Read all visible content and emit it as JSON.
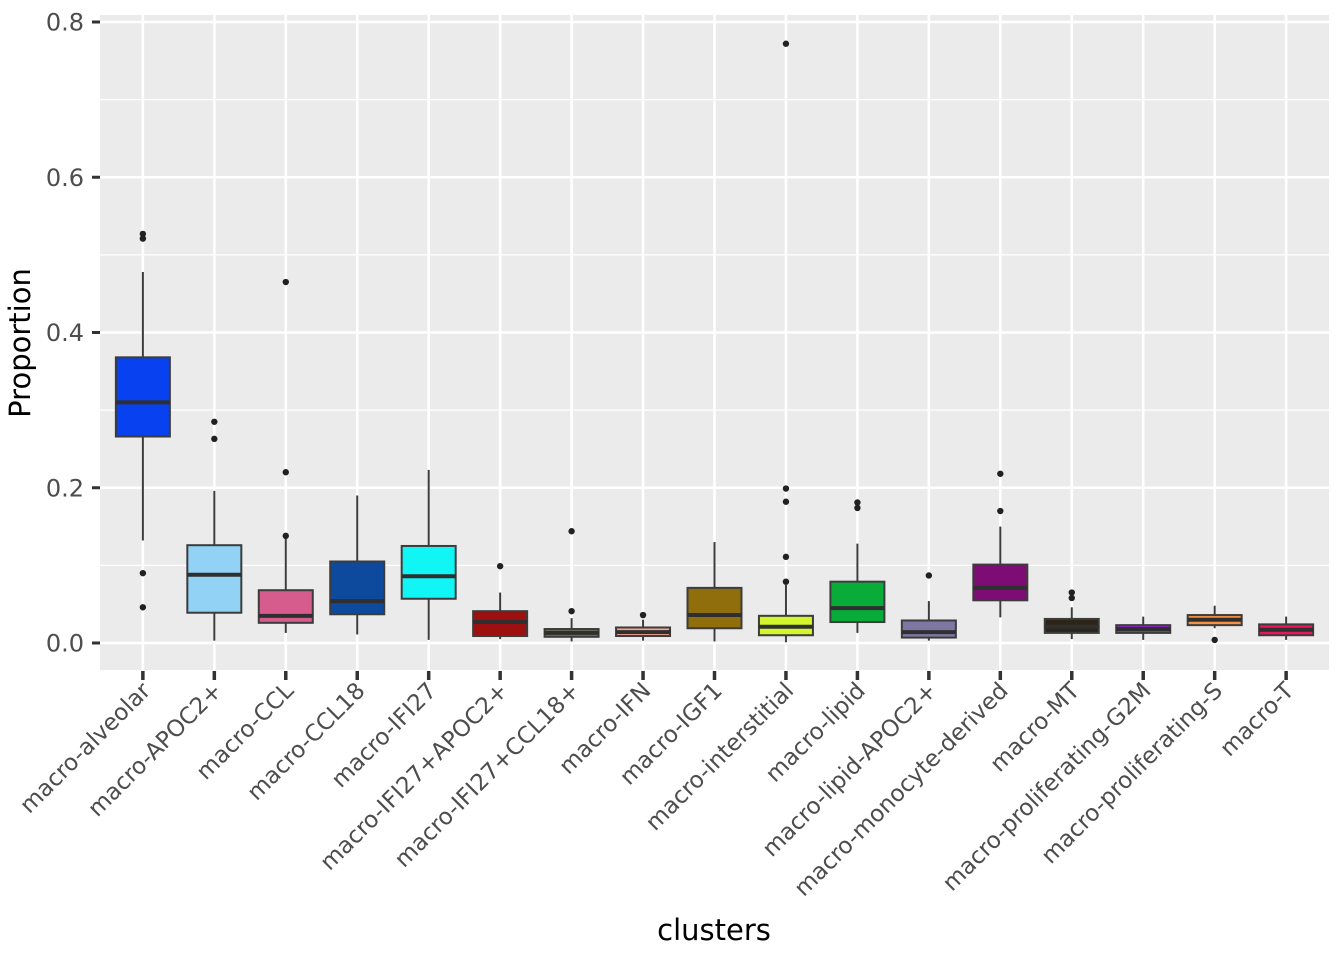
{
  "figure": {
    "background": "#FFFFFF",
    "panel_background": "#EBEBEB",
    "grid_major_color": "#FFFFFF",
    "grid_minor_color": "#FFFFFF",
    "axis_text_color": "#4D4D4D",
    "axis_title_color": "#000000",
    "tick_mark_color": "#333333",
    "box_border_color": "#3C3C3C",
    "median_line_color": "#2F2F2F",
    "outlier_color": "#212121"
  },
  "chart_data": {
    "type": "boxplot",
    "title": "",
    "xlabel": "clusters",
    "ylabel": "Proportion",
    "ylim": [
      0.0,
      0.8
    ],
    "yticks": [
      0.0,
      0.2,
      0.4,
      0.6,
      0.8
    ],
    "ytick_labels": [
      "0.0",
      "0.2",
      "0.4",
      "0.6",
      "0.8"
    ],
    "minor_gridlines": [
      0.1,
      0.3,
      0.5,
      0.7
    ],
    "grid": true,
    "legend": "none",
    "categories": [
      "macro-alveolar",
      "macro-APOC2+",
      "macro-CCL",
      "macro-CCL18",
      "macro-IFI27",
      "macro-IFI27+APOC2+",
      "macro-IFI27+CCL18+",
      "macro-IFN",
      "macro-IGF1",
      "macro-interstitial",
      "macro-lipid",
      "macro-lipid-APOC2+",
      "macro-monocyte-derived",
      "macro-MT",
      "macro-proliferating-G2M",
      "macro-proliferating-S",
      "macro-T"
    ],
    "series": [
      {
        "name": "macro-alveolar",
        "color": "#0741F0",
        "whisker_low": 0.132,
        "q1": 0.266,
        "median": 0.31,
        "q3": 0.368,
        "whisker_high": 0.478,
        "outliers": [
          0.527,
          0.521,
          0.09,
          0.046
        ]
      },
      {
        "name": "macro-APOC2+",
        "color": "#92D2F5",
        "whisker_low": 0.003,
        "q1": 0.039,
        "median": 0.088,
        "q3": 0.126,
        "whisker_high": 0.196,
        "outliers": [
          0.285,
          0.263
        ]
      },
      {
        "name": "macro-CCL",
        "color": "#D65C8E",
        "whisker_low": 0.013,
        "q1": 0.026,
        "median": 0.035,
        "q3": 0.068,
        "whisker_high": 0.136,
        "outliers": [
          0.465,
          0.22,
          0.138
        ]
      },
      {
        "name": "macro-CCL18",
        "color": "#0D4A9E",
        "whisker_low": 0.011,
        "q1": 0.037,
        "median": 0.054,
        "q3": 0.105,
        "whisker_high": 0.19,
        "outliers": []
      },
      {
        "name": "macro-IFI27",
        "color": "#11F5F5",
        "whisker_low": 0.004,
        "q1": 0.057,
        "median": 0.086,
        "q3": 0.125,
        "whisker_high": 0.223,
        "outliers": []
      },
      {
        "name": "macro-IFI27+APOC2+",
        "color": "#9E0F0F",
        "whisker_low": 0.005,
        "q1": 0.009,
        "median": 0.027,
        "q3": 0.041,
        "whisker_high": 0.065,
        "outliers": [
          0.099
        ]
      },
      {
        "name": "macro-IFI27+CCL18+",
        "color": "#71755B",
        "whisker_low": 0.002,
        "q1": 0.008,
        "median": 0.013,
        "q3": 0.018,
        "whisker_high": 0.032,
        "outliers": [
          0.144,
          0.041
        ]
      },
      {
        "name": "macro-IFN",
        "color": "#F7A48F",
        "whisker_low": 0.003,
        "q1": 0.009,
        "median": 0.014,
        "q3": 0.02,
        "whisker_high": 0.03,
        "outliers": [
          0.036
        ]
      },
      {
        "name": "macro-IGF1",
        "color": "#8F6E0B",
        "whisker_low": 0.002,
        "q1": 0.019,
        "median": 0.036,
        "q3": 0.071,
        "whisker_high": 0.13,
        "outliers": []
      },
      {
        "name": "macro-interstitial",
        "color": "#D2F52B",
        "whisker_low": 0.001,
        "q1": 0.01,
        "median": 0.021,
        "q3": 0.035,
        "whisker_high": 0.075,
        "outliers": [
          0.772,
          0.199,
          0.182,
          0.111,
          0.079
        ]
      },
      {
        "name": "macro-lipid",
        "color": "#09AC39",
        "whisker_low": 0.013,
        "q1": 0.027,
        "median": 0.045,
        "q3": 0.079,
        "whisker_high": 0.128,
        "outliers": [
          0.181,
          0.174
        ]
      },
      {
        "name": "macro-lipid-APOC2+",
        "color": "#7F78A4",
        "whisker_low": 0.003,
        "q1": 0.007,
        "median": 0.014,
        "q3": 0.029,
        "whisker_high": 0.054,
        "outliers": [
          0.087
        ]
      },
      {
        "name": "macro-monocyte-derived",
        "color": "#7D0C74",
        "whisker_low": 0.033,
        "q1": 0.055,
        "median": 0.071,
        "q3": 0.101,
        "whisker_high": 0.15,
        "outliers": [
          0.218,
          0.17
        ]
      },
      {
        "name": "macro-MT",
        "color": "#2B2517",
        "whisker_low": 0.005,
        "q1": 0.013,
        "median": 0.021,
        "q3": 0.031,
        "whisker_high": 0.046,
        "outliers": [
          0.065,
          0.058
        ]
      },
      {
        "name": "macro-proliferating-G2M",
        "color": "#9623D2",
        "whisker_low": 0.004,
        "q1": 0.013,
        "median": 0.018,
        "q3": 0.023,
        "whisker_high": 0.034,
        "outliers": []
      },
      {
        "name": "macro-proliferating-S",
        "color": "#F79240",
        "whisker_low": 0.019,
        "q1": 0.023,
        "median": 0.03,
        "q3": 0.036,
        "whisker_high": 0.048,
        "outliers": [
          0.004
        ]
      },
      {
        "name": "macro-T",
        "color": "#EC135F",
        "whisker_low": 0.004,
        "q1": 0.01,
        "median": 0.017,
        "q3": 0.024,
        "whisker_high": 0.034,
        "outliers": []
      }
    ]
  }
}
